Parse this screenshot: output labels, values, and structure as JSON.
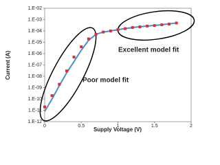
{
  "chart_data": {
    "type": "line",
    "x_label": "Supply Voltage (V)",
    "y_label": "Current (A)",
    "log_y": true,
    "grid": false,
    "xlim": [
      0,
      2
    ],
    "xticks": [
      0,
      0.5,
      1,
      1.5,
      2
    ],
    "ylim": [
      1e-12,
      0.01
    ],
    "yticks": [
      {
        "value": 1e-12,
        "label": "1.E-12"
      },
      {
        "value": 1e-11,
        "label": "1.E-11"
      },
      {
        "value": 1e-10,
        "label": "1.E-10"
      },
      {
        "value": 1e-09,
        "label": "1.E-09"
      },
      {
        "value": 1e-08,
        "label": "1.E-08"
      },
      {
        "value": 1e-07,
        "label": "1.E-07"
      },
      {
        "value": 1e-06,
        "label": "1.E-06"
      },
      {
        "value": 1e-05,
        "label": "1.E-05"
      },
      {
        "value": 0.0001,
        "label": "1.E-04"
      },
      {
        "value": 0.001,
        "label": "1.E-03"
      },
      {
        "value": 0.01,
        "label": "1.E-02"
      }
    ],
    "series": [
      {
        "kind": "line",
        "color": "#4a8fc8",
        "x": [
          0,
          0.1,
          0.2,
          0.3,
          0.4,
          0.5,
          0.6,
          0.7,
          0.8,
          0.9,
          1.0,
          1.2,
          1.4,
          1.6,
          1.8
        ],
        "values": [
          8e-12,
          1e-10,
          1.5e-09,
          2e-08,
          2e-07,
          2e-06,
          1.5e-05,
          5e-05,
          8e-05,
          0.0001,
          0.00013,
          0.0002,
          0.00027,
          0.00035,
          0.0005
        ]
      },
      {
        "kind": "points",
        "color": "#d9303a",
        "x": [
          0,
          0.1,
          0.2,
          0.3,
          0.4,
          0.5,
          0.6,
          0.7,
          0.8,
          0.9,
          1.0,
          1.1,
          1.2,
          1.3,
          1.4,
          1.5,
          1.6,
          1.7,
          1.8
        ],
        "values": [
          2e-11,
          2e-10,
          2e-09,
          3e-08,
          5e-07,
          4e-06,
          2e-05,
          5e-05,
          8e-05,
          0.0001,
          0.00013,
          0.00016,
          0.0002,
          0.00023,
          0.00027,
          0.0003,
          0.00035,
          0.0004,
          0.0005
        ]
      }
    ],
    "annotations": [
      "Excellent model fit",
      "Poor model fit"
    ]
  }
}
